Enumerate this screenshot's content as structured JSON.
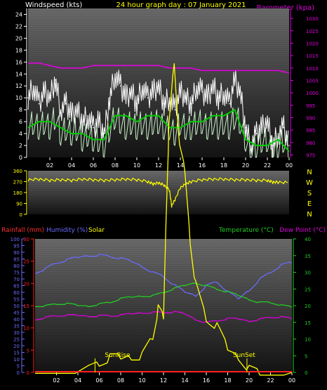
{
  "header": {
    "left": "Windspeed (kts)",
    "center": "24 hour graph day : 07 January 2021",
    "right": "Barometer (kpa)"
  },
  "colors": {
    "header_left": "#ffffff",
    "header_center": "#ffff00",
    "header_right": "#e000e0",
    "gust": "#ffffff",
    "avg": "#c8f0c8",
    "avg_mean": "#00cc00",
    "baro": "#e000e0",
    "dir": "#ffff00",
    "humidity": "#6a6aff",
    "solar": "#ffff00",
    "temperature": "#22cc22",
    "dewpoint": "#dd00dd",
    "rainfall": "#ff2020",
    "legend_left": "#ff3030"
  },
  "bottom_labels": {
    "rainfall": "Rainfall (mm)",
    "humidity": "Humidity (%)",
    "solar": "Solar",
    "temperature": "Temperature (°C)",
    "dewpoint": "Dew Point (°C)",
    "sunrise": "SunRise",
    "sunset": "SunSet"
  },
  "dir_labels": [
    "N",
    "W",
    "S",
    "E",
    "N"
  ],
  "chart_data": [
    {
      "type": "line",
      "name": "wind",
      "x_ticks": [
        "02",
        "04",
        "06",
        "08",
        "10",
        "12",
        "14",
        "16",
        "18",
        "20",
        "22",
        "00"
      ],
      "ylim_left": [
        0,
        25
      ],
      "left_ticks": [
        0,
        2,
        4,
        6,
        8,
        10,
        12,
        14,
        16,
        18,
        20,
        22,
        24
      ],
      "ylim_right": [
        974,
        1034
      ],
      "right_ticks": [
        975,
        980,
        985,
        990,
        995,
        1000,
        1005,
        1010,
        1015,
        1020,
        1025,
        1030
      ],
      "series": [
        {
          "name": "gust",
          "x": [
            0,
            0.5,
            1,
            1.5,
            2,
            2.5,
            3,
            3.5,
            4,
            4.5,
            5,
            5.5,
            6,
            6.5,
            7,
            7.5,
            8,
            8.5,
            9,
            9.5,
            10,
            10.5,
            11,
            11.5,
            12,
            12.5,
            13,
            13.5,
            14,
            14.5,
            15,
            15.5,
            16,
            16.5,
            17,
            17.5,
            18,
            18.5,
            19,
            19.5,
            20,
            20.5,
            21,
            21.5,
            22,
            22.5,
            23,
            23.5,
            24
          ],
          "values": [
            10,
            12,
            9,
            11,
            10,
            13,
            8,
            9,
            7,
            8,
            6,
            7,
            5,
            6,
            4,
            10,
            14,
            12,
            10,
            11,
            9,
            12,
            10,
            11,
            12,
            9,
            10,
            8,
            11,
            10,
            9,
            12,
            11,
            10,
            12,
            10,
            11,
            9,
            13,
            11,
            5,
            2,
            4,
            5,
            6,
            2,
            4,
            5,
            2
          ]
        },
        {
          "name": "avg",
          "x": [
            0,
            0.5,
            1,
            1.5,
            2,
            2.5,
            3,
            3.5,
            4,
            4.5,
            5,
            5.5,
            6,
            6.5,
            7,
            7.5,
            8,
            8.5,
            9,
            9.5,
            10,
            10.5,
            11,
            11.5,
            12,
            12.5,
            13,
            13.5,
            14,
            14.5,
            15,
            15.5,
            16,
            16.5,
            17,
            17.5,
            18,
            18.5,
            19,
            19.5,
            20,
            20.5,
            21,
            21.5,
            22,
            22.5,
            23,
            23.5,
            24
          ],
          "values": [
            5,
            6,
            5,
            6,
            5,
            7,
            4,
            5,
            4,
            5,
            3,
            4,
            3,
            3,
            2,
            5,
            7,
            6,
            5,
            6,
            5,
            6,
            5,
            6,
            6,
            5,
            5,
            4,
            6,
            5,
            5,
            6,
            6,
            5,
            6,
            5,
            6,
            5,
            7,
            6,
            3,
            1,
            2,
            3,
            3,
            1,
            2,
            3,
            1
          ]
        },
        {
          "name": "avg_mean",
          "x": [
            0,
            1,
            2,
            3,
            4,
            5,
            6,
            7,
            8,
            9,
            10,
            11,
            12,
            13,
            14,
            15,
            16,
            17,
            18,
            19,
            20,
            21,
            22,
            23,
            24
          ],
          "values": [
            5,
            6,
            6,
            5,
            4,
            4,
            3,
            3,
            7,
            7,
            6,
            7,
            7,
            5,
            5,
            6,
            6,
            7,
            7,
            8,
            3,
            2,
            2,
            3,
            1
          ]
        },
        {
          "name": "barometer",
          "x": [
            0,
            1,
            2,
            3,
            4,
            5,
            6,
            7,
            8,
            9,
            10,
            11,
            12,
            13,
            14,
            15,
            16,
            17,
            18,
            19,
            20,
            21,
            22,
            23,
            24
          ],
          "values": [
            1012,
            1012,
            1011,
            1010,
            1010,
            1010,
            1011,
            1011,
            1011,
            1011,
            1011,
            1011,
            1011,
            1010,
            1010,
            1010,
            1009,
            1009,
            1009,
            1009,
            1009,
            1009,
            1009,
            1009,
            1008
          ]
        }
      ]
    },
    {
      "type": "line",
      "name": "wind_direction",
      "ylim": [
        0,
        360
      ],
      "ticks": [
        0,
        90,
        180,
        270,
        360
      ],
      "series": [
        {
          "name": "direction",
          "x": [
            0,
            1,
            2,
            3,
            4,
            5,
            6,
            7,
            8,
            9,
            10,
            11,
            11.5,
            12,
            12.5,
            13,
            13.2,
            13.5,
            14,
            14.5,
            15,
            16,
            17,
            18,
            19,
            20,
            21,
            22,
            22.5,
            23,
            24
          ],
          "values": [
            285,
            290,
            280,
            285,
            280,
            290,
            285,
            280,
            285,
            290,
            285,
            270,
            250,
            260,
            240,
            200,
            70,
            120,
            220,
            250,
            270,
            285,
            290,
            290,
            285,
            285,
            280,
            280,
            265,
            265,
            260
          ]
        }
      ]
    },
    {
      "type": "line",
      "name": "weather",
      "left_ticks": [
        0,
        5,
        10,
        15,
        20,
        25,
        30,
        35,
        40,
        45,
        50,
        55,
        60,
        65,
        70,
        75,
        80,
        85,
        90,
        95,
        100
      ],
      "ylim_left": [
        0,
        100
      ],
      "rain_ticks": [
        0,
        5,
        10,
        15,
        20,
        25,
        30
      ],
      "ylim_rain": [
        0,
        30
      ],
      "right_ticks": [
        0,
        5,
        10,
        15,
        20,
        25,
        30,
        35,
        40
      ],
      "ylim_right": [
        0,
        40
      ],
      "series": [
        {
          "name": "humidity",
          "x": [
            0,
            1,
            2,
            3,
            4,
            5,
            6,
            7,
            8,
            9,
            10,
            11,
            12,
            13,
            14,
            15,
            16,
            17,
            18,
            19,
            20,
            21,
            22,
            23,
            24
          ],
          "values": [
            75,
            78,
            82,
            84,
            86,
            88,
            88,
            87,
            85,
            83,
            80,
            75,
            72,
            65,
            60,
            58,
            65,
            68,
            60,
            55,
            62,
            70,
            75,
            80,
            82
          ]
        },
        {
          "name": "temperature",
          "x": [
            0,
            1,
            2,
            3,
            4,
            5,
            6,
            7,
            8,
            9,
            10,
            11,
            12,
            13,
            14,
            15,
            16,
            17,
            18,
            19,
            20,
            21,
            22,
            23,
            24
          ],
          "values": [
            20,
            20,
            20.5,
            20.5,
            20,
            20,
            20.5,
            21,
            22,
            22.5,
            23,
            23,
            24,
            25,
            26,
            27,
            26,
            25,
            24,
            23,
            22,
            21,
            21,
            20,
            19.5
          ]
        },
        {
          "name": "dew_point",
          "x": [
            0,
            1,
            2,
            3,
            4,
            5,
            6,
            7,
            8,
            9,
            10,
            11,
            12,
            13,
            14,
            15,
            16,
            17,
            18,
            19,
            20,
            21,
            22,
            23,
            24
          ],
          "values": [
            16,
            16.5,
            17,
            17,
            17,
            17,
            17,
            17,
            17,
            17.5,
            18,
            18,
            18,
            18,
            17.5,
            16,
            15,
            15.5,
            16,
            16,
            15.5,
            16,
            16.5,
            16.5,
            16
          ]
        },
        {
          "name": "solar",
          "x": [
            0,
            5,
            6,
            7,
            8,
            9,
            10,
            11,
            11.5,
            12,
            12.3,
            12.5,
            13,
            13.5,
            14,
            14.5,
            15,
            16,
            17,
            18,
            19,
            20,
            21,
            24
          ],
          "values": [
            1,
            1,
            2,
            3,
            3,
            4,
            4,
            8,
            14,
            12,
            40,
            55,
            70,
            50,
            45,
            30,
            20,
            12,
            10,
            5,
            4,
            1,
            0,
            0
          ]
        },
        {
          "name": "rainfall",
          "x": [
            0,
            24
          ],
          "values": [
            0,
            0
          ]
        }
      ]
    }
  ]
}
